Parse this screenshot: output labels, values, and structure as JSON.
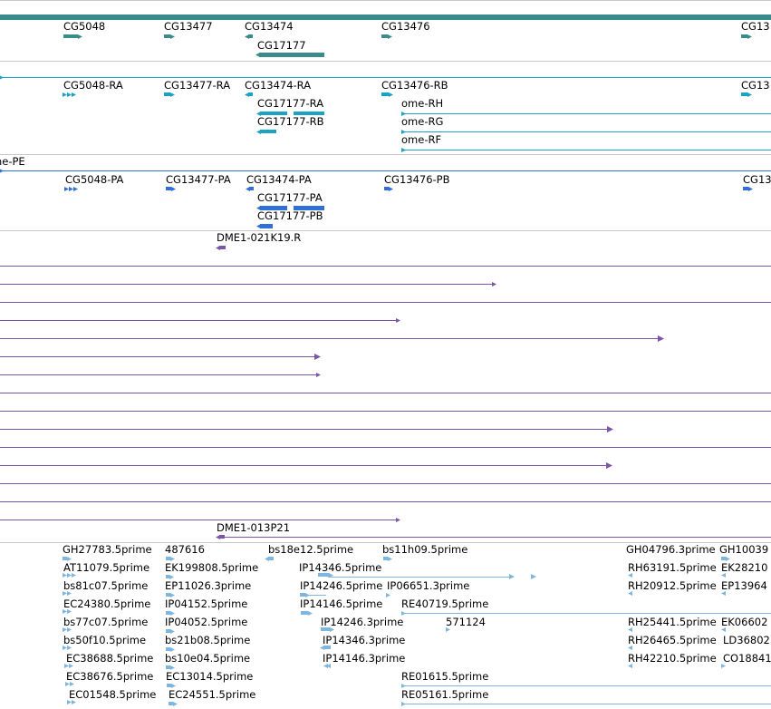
{
  "colors": {
    "gene": "#3a8c8c",
    "transcript": "#1ba3c6",
    "protein": "#2f6fd6",
    "clone": "#7b55a8",
    "est": "#7fb6df",
    "separator": "#c8c8c8"
  },
  "tracks": {
    "genes": {
      "items": [
        {
          "id": "g1",
          "label": "CG5048",
          "strand": "+"
        },
        {
          "id": "g2",
          "label": "CG13477",
          "strand": "+"
        },
        {
          "id": "g3",
          "label": "CG13474",
          "strand": "-"
        },
        {
          "id": "g4",
          "label": "CG13476",
          "strand": "+"
        },
        {
          "id": "g5",
          "label": "CG13",
          "strand": "+"
        },
        {
          "id": "g6",
          "label": "CG17177",
          "strand": "-"
        }
      ]
    },
    "transcripts": {
      "items": [
        {
          "id": "t1",
          "label": "CG5048-RA",
          "strand": "+"
        },
        {
          "id": "t2",
          "label": "CG13477-RA",
          "strand": "+"
        },
        {
          "id": "t3",
          "label": "CG13474-RA",
          "strand": "-"
        },
        {
          "id": "t4",
          "label": "CG13476-RB",
          "strand": "+"
        },
        {
          "id": "t5",
          "label": "CG13",
          "strand": "+"
        },
        {
          "id": "t6",
          "label": "CG17177-RA",
          "strand": "-"
        },
        {
          "id": "t7",
          "label": "CG17177-RB",
          "strand": "-"
        },
        {
          "id": "t8",
          "label": "ome-RH",
          "strand": "+"
        },
        {
          "id": "t9",
          "label": "ome-RG",
          "strand": "+"
        },
        {
          "id": "t10",
          "label": "ome-RF",
          "strand": "+"
        }
      ]
    },
    "proteins": {
      "items": [
        {
          "id": "p0",
          "label": "ome-PE",
          "strand": "+"
        },
        {
          "id": "p1",
          "label": "CG5048-PA",
          "strand": "+"
        },
        {
          "id": "p2",
          "label": "CG13477-PA",
          "strand": "+"
        },
        {
          "id": "p3",
          "label": "CG13474-PA",
          "strand": "-"
        },
        {
          "id": "p4",
          "label": "CG13476-PB",
          "strand": "+"
        },
        {
          "id": "p5",
          "label": "CG13",
          "strand": "+"
        },
        {
          "id": "p6",
          "label": "CG17177-PA",
          "strand": "-"
        },
        {
          "id": "p7",
          "label": "CG17177-PB",
          "strand": "-"
        }
      ]
    },
    "clones": {
      "items": [
        {
          "id": "c1",
          "label": "DME1-021K19.R"
        },
        {
          "id": "c2",
          "label": "DME1-013P21"
        }
      ]
    },
    "ests": {
      "items": [
        {
          "id": "e1",
          "label": "GH27783.5prime"
        },
        {
          "id": "e2",
          "label": "487616"
        },
        {
          "id": "e3",
          "label": "bs18e12.5prime"
        },
        {
          "id": "e4",
          "label": "bs11h09.5prime"
        },
        {
          "id": "e5",
          "label": "GH04796.3prime"
        },
        {
          "id": "e6",
          "label": "GH10039"
        },
        {
          "id": "e7",
          "label": "AT11079.5prime"
        },
        {
          "id": "e8",
          "label": "EK199808.5prime"
        },
        {
          "id": "e9",
          "label": "IP14346.5prime"
        },
        {
          "id": "e10",
          "label": "RH63191.5prime"
        },
        {
          "id": "e11",
          "label": "EK28210"
        },
        {
          "id": "e12",
          "label": "bs81c07.5prime"
        },
        {
          "id": "e13",
          "label": "EP11026.3prime"
        },
        {
          "id": "e14",
          "label": "IP14246.5prime"
        },
        {
          "id": "e15",
          "label": "IP06651.3prime"
        },
        {
          "id": "e16",
          "label": "RH20912.5prime"
        },
        {
          "id": "e17",
          "label": "EP13964"
        },
        {
          "id": "e18",
          "label": "EC24380.5prime"
        },
        {
          "id": "e19",
          "label": "IP04152.5prime"
        },
        {
          "id": "e20",
          "label": "IP14146.5prime"
        },
        {
          "id": "e21",
          "label": "RE40719.5prime"
        },
        {
          "id": "e22",
          "label": "bs77c07.5prime"
        },
        {
          "id": "e23",
          "label": "IP04052.5prime"
        },
        {
          "id": "e24",
          "label": "IP14246.3prime"
        },
        {
          "id": "e25",
          "label": "571124"
        },
        {
          "id": "e26",
          "label": "RH25441.5prime"
        },
        {
          "id": "e27",
          "label": "EK06602"
        },
        {
          "id": "e28",
          "label": "bs50f10.5prime"
        },
        {
          "id": "e29",
          "label": "bs21b08.5prime"
        },
        {
          "id": "e30",
          "label": "IP14346.3prime"
        },
        {
          "id": "e31",
          "label": "RH26465.5prime"
        },
        {
          "id": "e32",
          "label": "LD36802"
        },
        {
          "id": "e33",
          "label": "EC38688.5prime"
        },
        {
          "id": "e34",
          "label": "bs10e04.5prime"
        },
        {
          "id": "e35",
          "label": "IP14146.3prime"
        },
        {
          "id": "e36",
          "label": "RH42210.5prime"
        },
        {
          "id": "e37",
          "label": "CO18841"
        },
        {
          "id": "e38",
          "label": "EC38676.5prime"
        },
        {
          "id": "e39",
          "label": "EC13014.5prime"
        },
        {
          "id": "e40",
          "label": "RE01615.5prime"
        },
        {
          "id": "e41",
          "label": "EC01548.5prime"
        },
        {
          "id": "e42",
          "label": "EC24551.5prime"
        },
        {
          "id": "e43",
          "label": "RE05161.5prime"
        }
      ]
    }
  }
}
